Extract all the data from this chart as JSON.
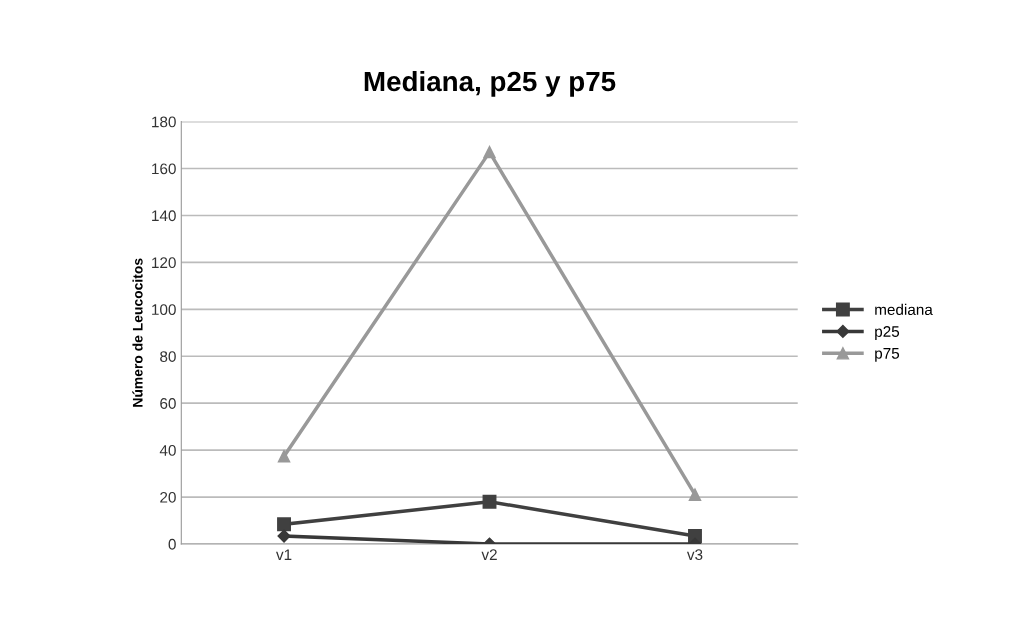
{
  "chart_data": {
    "type": "line",
    "title": "Mediana, p25 y p75",
    "ylabel": "Número de Leucocitos",
    "categories": [
      "v1",
      "v2",
      "v3"
    ],
    "series": [
      {
        "name": "mediana",
        "color": "#404040",
        "marker": "square",
        "values": [
          8.4,
          18,
          3.4
        ]
      },
      {
        "name": "p25",
        "color": "#383838",
        "marker": "diamond",
        "values": [
          3.4,
          0,
          0
        ]
      },
      {
        "name": "p75",
        "color": "#999999",
        "marker": "triangle",
        "values": [
          37.4,
          167,
          21
        ]
      }
    ],
    "ylim": [
      0,
      180
    ],
    "yticks": [
      0,
      20,
      40,
      60,
      80,
      100,
      120,
      140,
      160,
      180
    ],
    "grid": "y",
    "legend": "right",
    "line_style": "solid"
  }
}
